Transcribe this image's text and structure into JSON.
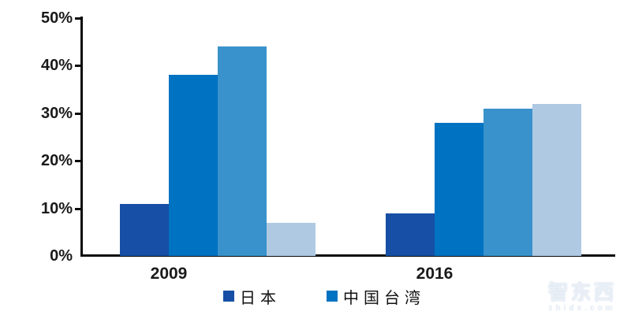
{
  "chart_data": {
    "type": "bar",
    "categories": [
      "2009",
      "2016"
    ],
    "series": [
      {
        "name": "日本",
        "values": [
          11,
          9
        ],
        "color": "#164fa5"
      },
      {
        "name": "中国台湾",
        "values": [
          38,
          28
        ],
        "color": "#0072c2"
      },
      {
        "name": "",
        "values": [
          44,
          31
        ],
        "color": "#3992cb"
      },
      {
        "name": "",
        "values": [
          7,
          32
        ],
        "color": "#afc9e2"
      }
    ],
    "title": "",
    "xlabel": "",
    "ylabel": "",
    "ylim": [
      0,
      50
    ],
    "yticks": [
      "0%",
      "10%",
      "20%",
      "30%",
      "40%",
      "50%"
    ],
    "grid": false,
    "legend_position": "bottom"
  },
  "legend": {
    "items": [
      {
        "label": "日本",
        "color": "#164fa5"
      },
      {
        "label": "中国台湾",
        "color": "#0072c2"
      }
    ]
  },
  "watermark": {
    "title": "智东西",
    "subtitle": "zhidx.com"
  },
  "colors": {
    "axis": "#0a0a0a",
    "text": "#1a1a1a",
    "background": "#ffffff"
  }
}
